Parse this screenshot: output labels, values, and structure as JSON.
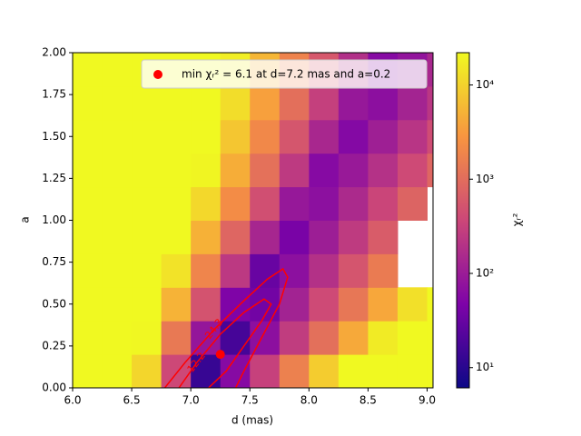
{
  "chart_data": {
    "type": "heatmap",
    "xlabel": "d (mas)",
    "ylabel": "a",
    "x": [
      6.125,
      6.375,
      6.625,
      6.875,
      7.125,
      7.375,
      7.625,
      7.875,
      8.125,
      8.375,
      8.625,
      8.875,
      9.125
    ],
    "y": [
      0.1,
      0.3,
      0.5,
      0.7,
      0.9,
      1.1,
      1.3,
      1.5,
      1.7,
      1.9
    ],
    "z": [
      [
        22000,
        22000,
        10700,
        380,
        13,
        59,
        310,
        1660,
        8700,
        22000,
        22000,
        22000,
        22000
      ],
      [
        22000,
        22000,
        21000,
        1350,
        85,
        17,
        68,
        270,
        1070,
        4270,
        16600,
        22000,
        22000
      ],
      [
        22000,
        22000,
        22000,
        5250,
        500,
        49,
        38,
        123,
        400,
        1290,
        4070,
        13200,
        22000
      ],
      [
        22000,
        22000,
        22000,
        14100,
        1860,
        240,
        32,
        69,
        190,
        525,
        1450,
        null,
        null
      ],
      [
        22000,
        22000,
        22000,
        22000,
        5000,
        830,
        135,
        43,
        105,
        257,
        630,
        null,
        null
      ],
      [
        22000,
        22000,
        22000,
        22000,
        11200,
        2240,
        450,
        89,
        69,
        155,
        350,
        780,
        null
      ],
      [
        22000,
        22000,
        22000,
        22000,
        20400,
        4680,
        1100,
        250,
        59,
        93,
        195,
        400,
        830
      ],
      [
        22000,
        22000,
        22000,
        22000,
        22000,
        7800,
        2040,
        540,
        141,
        56,
        110,
        214,
        417
      ],
      [
        22000,
        22000,
        22000,
        22000,
        22000,
        12300,
        3550,
        1050,
        300,
        89,
        68,
        126,
        229
      ],
      [
        22000,
        22000,
        22000,
        22000,
        22000,
        17400,
        5600,
        1780,
        575,
        182,
        59,
        79,
        141
      ]
    ],
    "colormap": "plasma",
    "color_scale": "log",
    "clim": [
      6.1,
      22000
    ],
    "colorbar_label": "χᵣ²",
    "colorbar_ticks": [
      {
        "value": 10,
        "label": "10¹"
      },
      {
        "value": 100,
        "label": "10²"
      },
      {
        "value": 1000,
        "label": "10³"
      },
      {
        "value": 10000,
        "label": "10⁴"
      }
    ],
    "xlim": [
      6,
      9.05
    ],
    "ylim": [
      0,
      2
    ],
    "xticks": [
      {
        "value": 6,
        "label": "6.0"
      },
      6.5,
      {
        "value": 7,
        "label": "7.0"
      },
      7.5,
      {
        "value": 8,
        "label": "8.0"
      },
      8.5,
      {
        "value": 9,
        "label": "9.0"
      }
    ],
    "yticks": [
      {
        "value": 0,
        "label": "0.00"
      },
      0.25,
      {
        "value": 0.5,
        "label": "0.50"
      },
      0.75,
      {
        "value": 1,
        "label": "1.00"
      },
      1.25,
      {
        "value": 1.5,
        "label": "1.50"
      },
      1.75,
      {
        "value": 2,
        "label": "2.00"
      }
    ],
    "contours": [
      {
        "level": 12.2,
        "color": "#ff0000",
        "x": [
          6.9,
          7.05,
          7.25,
          7.45,
          7.62,
          7.68,
          7.6,
          7.45,
          7.3,
          7.15
        ],
        "y": [
          0,
          0.15,
          0.32,
          0.45,
          0.53,
          0.5,
          0.4,
          0.25,
          0.1,
          0
        ]
      },
      {
        "level": 24.3,
        "color": "#ff0000",
        "x": [
          6.78,
          6.95,
          7.2,
          7.45,
          7.65,
          7.78,
          7.82,
          7.75,
          7.6,
          7.45,
          7.38
        ],
        "y": [
          0,
          0.15,
          0.35,
          0.52,
          0.65,
          0.71,
          0.66,
          0.5,
          0.3,
          0.1,
          0
        ]
      }
    ],
    "min_point": {
      "x": 7.25,
      "y": 0.2,
      "color": "#ff0000"
    },
    "legend_label": "min χᵣ² = 6.1 at d=7.2 mas and a=0.2",
    "legend_loc": "upper right"
  }
}
